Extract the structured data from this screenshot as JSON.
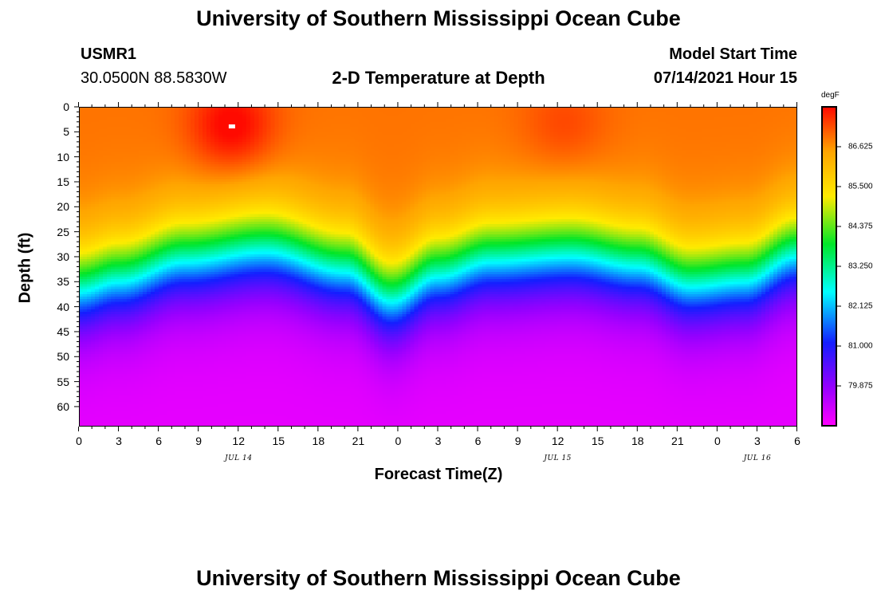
{
  "header": {
    "title_top": "University of Southern Mississippi Ocean Cube",
    "title_bottom": "University of Southern Mississippi Ocean Cube",
    "station": "USMR1",
    "coords": "30.0500N  88.5830W",
    "plot_title": "2-D Temperature at Depth",
    "model_start_label": "Model Start Time",
    "model_start_value": "07/14/2021 Hour 15"
  },
  "chart_data": {
    "type": "heatmap",
    "title": "2-D Temperature at Depth",
    "xlabel": "Forecast Time(Z)",
    "ylabel": "Depth (ft)",
    "x_ticks": [
      "0",
      "3",
      "6",
      "9",
      "12",
      "15",
      "18",
      "21",
      "0",
      "3",
      "6",
      "9",
      "12",
      "15",
      "18",
      "21",
      "0",
      "3",
      "6"
    ],
    "x_range_hours": [
      0,
      54
    ],
    "date_labels": [
      {
        "text": "JUL 14",
        "hour": 12
      },
      {
        "text": "JUL 15",
        "hour": 36
      },
      {
        "text": "JUL 16",
        "hour": 51
      }
    ],
    "y_ticks": [
      "0",
      "5",
      "10",
      "15",
      "20",
      "25",
      "30",
      "35",
      "40",
      "45",
      "50",
      "55",
      "60"
    ],
    "y_range_ft": [
      0,
      64
    ],
    "colorbar": {
      "units": "degF",
      "min": 78.75,
      "max": 87.75,
      "ticks": [
        "86.625",
        "85.500",
        "84.375",
        "83.250",
        "82.125",
        "81.000",
        "79.875"
      ]
    },
    "max_marker": {
      "hour": 11.5,
      "depth_ft": 4
    },
    "surface_temp_peaks": [
      {
        "hour": 11.5,
        "temp": 87.9
      },
      {
        "hour": 36.5,
        "temp": 87.3
      }
    ],
    "thermocline_depth_ft": [
      {
        "hour": 0,
        "depth": 36
      },
      {
        "hour": 3,
        "depth": 34
      },
      {
        "hour": 8,
        "depth": 30
      },
      {
        "hour": 14,
        "depth": 28
      },
      {
        "hour": 20,
        "depth": 32
      },
      {
        "hour": 23.5,
        "depth": 38
      },
      {
        "hour": 27,
        "depth": 33
      },
      {
        "hour": 31,
        "depth": 30
      },
      {
        "hour": 37,
        "depth": 29
      },
      {
        "hour": 42,
        "depth": 31
      },
      {
        "hour": 46,
        "depth": 35
      },
      {
        "hour": 50,
        "depth": 34
      },
      {
        "hour": 54,
        "depth": 29
      }
    ],
    "surface_temp_base": 86.9,
    "bottom_temp": 79.0
  }
}
